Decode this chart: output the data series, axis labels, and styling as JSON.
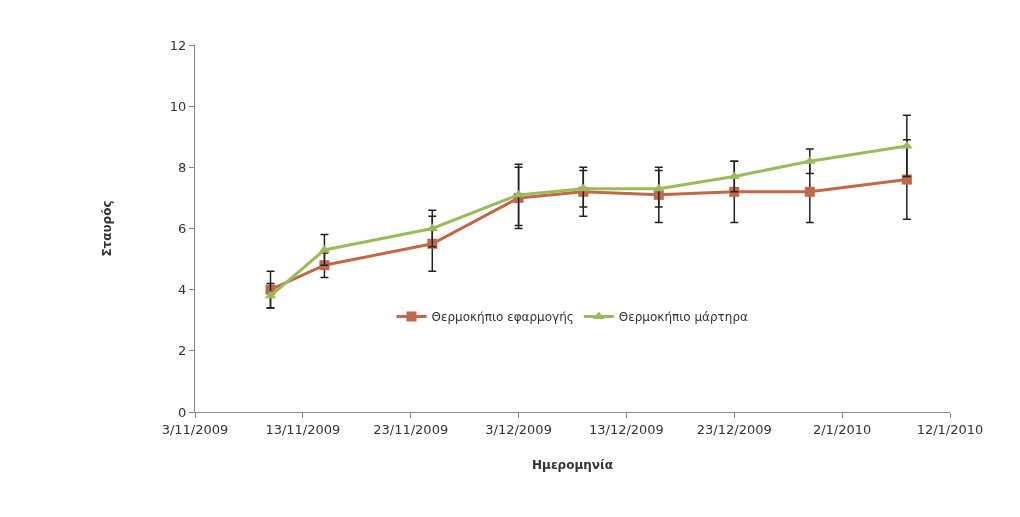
{
  "chart_data": {
    "type": "line",
    "xlabel": "Ημερομηνία",
    "ylabel": "Σταυρός",
    "x": [
      "2009-11-10",
      "2009-11-15",
      "2009-11-25",
      "2009-12-03",
      "2009-12-09",
      "2009-12-16",
      "2009-12-23",
      "2009-12-30",
      "2010-01-08"
    ],
    "series": [
      {
        "name": "Θερμοκήπιο εφαρμογής",
        "color": "#c0694a",
        "marker": "square",
        "values": [
          4.0,
          4.8,
          5.5,
          7.0,
          7.2,
          7.1,
          7.2,
          7.2,
          7.6
        ],
        "errors": [
          0.6,
          0.4,
          0.9,
          1.0,
          0.8,
          0.9,
          1.0,
          1.0,
          1.3
        ]
      },
      {
        "name": "Θερμοκήπιο μάρτηρα",
        "color": "#9bbb59",
        "marker": "triangle",
        "values": [
          3.8,
          5.3,
          6.0,
          7.1,
          7.3,
          7.3,
          7.7,
          8.2,
          8.7
        ],
        "errors": [
          0.4,
          0.5,
          0.6,
          1.0,
          0.6,
          0.6,
          0.5,
          0.4,
          1.0
        ]
      }
    ],
    "xlim": [
      "2009-11-03",
      "2010-01-12"
    ],
    "xticks": [
      {
        "value": "2009-11-03",
        "label": "3/11/2009"
      },
      {
        "value": "2009-11-13",
        "label": "13/11/2009"
      },
      {
        "value": "2009-11-23",
        "label": "23/11/2009"
      },
      {
        "value": "2009-12-03",
        "label": "3/12/2009"
      },
      {
        "value": "2009-12-13",
        "label": "13/12/2009"
      },
      {
        "value": "2009-12-23",
        "label": "23/12/2009"
      },
      {
        "value": "2010-01-02",
        "label": "2/1/2010"
      },
      {
        "value": "2010-01-12",
        "label": "12/1/2010"
      }
    ],
    "ylim": [
      0,
      12
    ],
    "yticks": [
      0,
      2,
      4,
      6,
      8,
      10,
      12
    ],
    "grid": false,
    "legend": "bottom",
    "line_style": "solid"
  }
}
